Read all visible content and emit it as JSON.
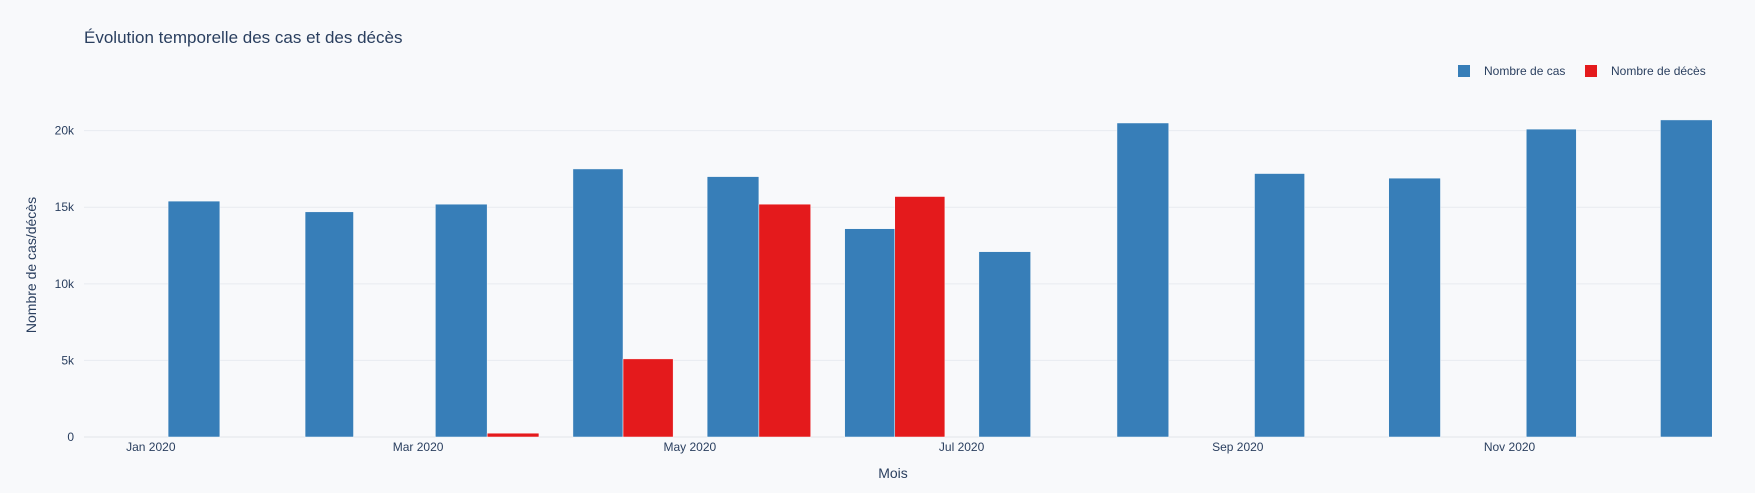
{
  "chart_data": {
    "type": "bar",
    "title": "Évolution temporelle des cas et des décès",
    "xlabel": "Mois",
    "ylabel": "Nombre de cas/décès",
    "ylim": [
      0,
      22000
    ],
    "grid": true,
    "legend_position": "top-right",
    "categories": [
      "2020-01",
      "2020-02",
      "2020-03",
      "2020-04",
      "2020-05",
      "2020-06",
      "2020-07",
      "2020-08",
      "2020-09",
      "2020-10",
      "2020-11",
      "2020-12"
    ],
    "x_tick_labels": [
      "Jan 2020",
      "Mar 2020",
      "May 2020",
      "Jul 2020",
      "Sep 2020",
      "Nov 2020"
    ],
    "y_ticks": [
      0,
      5000,
      10000,
      15000,
      20000
    ],
    "y_tick_labels": [
      "0",
      "5k",
      "10k",
      "15k",
      "20k"
    ],
    "series": [
      {
        "name": "Nombre de cas",
        "color": "#377eb8",
        "values": [
          15400,
          14700,
          15200,
          17500,
          17000,
          13600,
          12100,
          20500,
          17200,
          16900,
          20100,
          20700
        ]
      },
      {
        "name": "Nombre de décès",
        "color": "#e41a1c",
        "values": [
          0,
          0,
          250,
          5100,
          15200,
          15700,
          0,
          0,
          0,
          0,
          0,
          0
        ]
      }
    ]
  }
}
